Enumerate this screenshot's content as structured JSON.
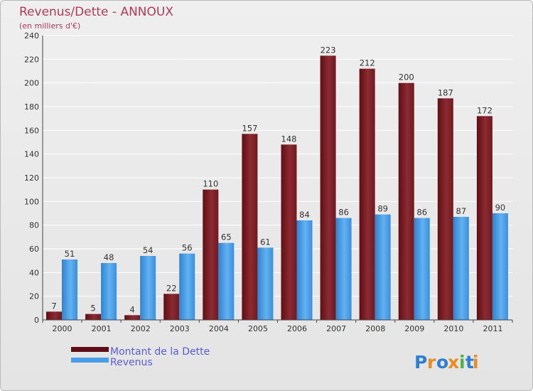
{
  "chart_data": {
    "type": "bar",
    "title": "Revenus/Dette - ANNOUX",
    "subtitle": "(en milliers d'€)",
    "categories": [
      "2000",
      "2001",
      "2002",
      "2003",
      "2004",
      "2005",
      "2006",
      "2007",
      "2008",
      "2009",
      "2010",
      "2011"
    ],
    "series": [
      {
        "name": "Montant de la Dette",
        "color": "#7a1f25",
        "values": [
          7,
          5,
          4,
          22,
          110,
          157,
          148,
          223,
          212,
          200,
          187,
          172
        ]
      },
      {
        "name": "Revenus",
        "color": "#4a9ee6",
        "values": [
          51,
          48,
          54,
          56,
          65,
          61,
          84,
          86,
          89,
          86,
          87,
          90
        ]
      }
    ],
    "ylim": [
      0,
      240
    ],
    "yticks": [
      0,
      20,
      40,
      60,
      80,
      100,
      120,
      140,
      160,
      180,
      200,
      220,
      240
    ],
    "xlabel": "",
    "ylabel": "",
    "legend_position": "bottom-left"
  },
  "brand": {
    "name": "Proxiti",
    "letters": [
      "P",
      "r",
      "o",
      "x",
      "i",
      "t",
      "i"
    ],
    "colors": [
      "#2d7fd4",
      "#f08a1c",
      "#2d7fd4",
      "#f08a1c",
      "#4bb34b",
      "#2d7fd4",
      "#f08a1c"
    ]
  }
}
